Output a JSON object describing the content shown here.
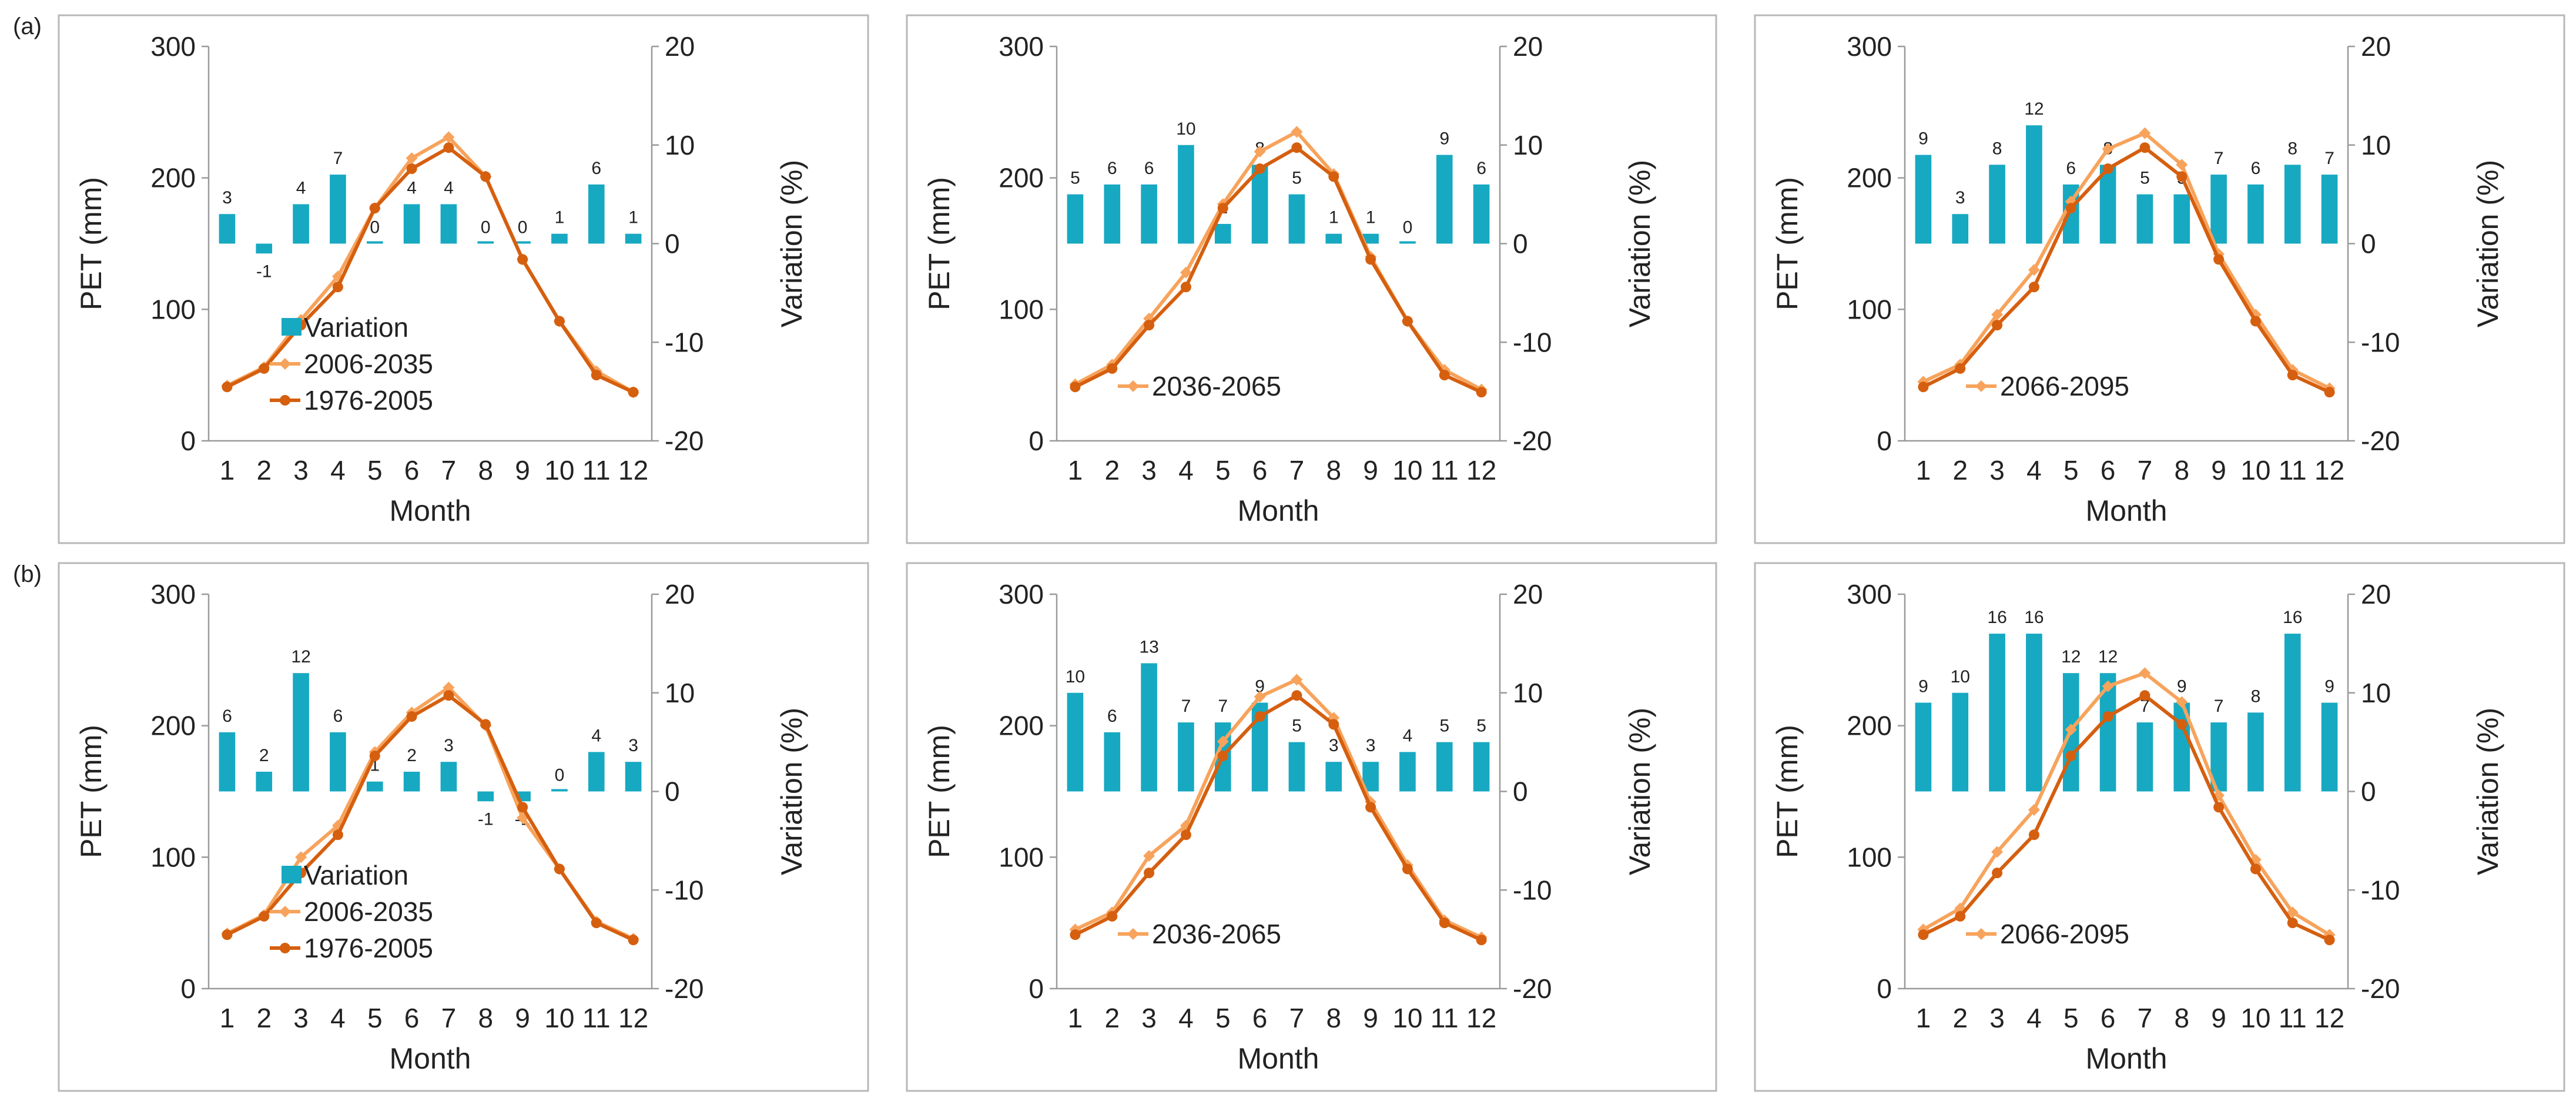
{
  "row_labels": [
    "(a)",
    "(b)"
  ],
  "colors": {
    "variation_bar": "#17a9c1",
    "future_line": "#f7a35c",
    "baseline_line": "#d55f0f",
    "frame": "#b8b8b8",
    "axis_text": "#222222"
  },
  "chart_data": [
    {
      "panel": "a1",
      "row": 0,
      "col": 0,
      "type": "bar+line",
      "xlabel": "Month",
      "ylabel_left": "PET (mm)",
      "ylabel_right": "Variation (%)",
      "categories": [
        1,
        2,
        3,
        4,
        5,
        6,
        7,
        8,
        9,
        10,
        11,
        12
      ],
      "left_axis": {
        "range": [
          0,
          300
        ],
        "ticks": [
          0,
          100,
          200,
          300
        ]
      },
      "right_axis": {
        "range": [
          -20,
          20
        ],
        "ticks": [
          -20,
          -10,
          0,
          10,
          20
        ]
      },
      "series": [
        {
          "name": "Variation",
          "kind": "bar",
          "axis": "right",
          "values": [
            3,
            -1,
            4,
            7,
            0,
            4,
            4,
            0,
            0,
            1,
            6,
            1
          ],
          "labels": [
            "3",
            "-1",
            "4",
            "7",
            "0",
            "4",
            "4",
            "0",
            "0",
            "1",
            "6",
            "1"
          ]
        },
        {
          "name": "2006-2035",
          "kind": "line",
          "axis": "left",
          "values": [
            42,
            56,
            92,
            125,
            177,
            215,
            231,
            201,
            138,
            91,
            53,
            37
          ]
        },
        {
          "name": "1976-2005",
          "kind": "line",
          "axis": "left",
          "values": [
            41,
            55,
            88,
            117,
            177,
            207,
            223,
            201,
            138,
            91,
            50,
            37
          ]
        }
      ],
      "legend": [
        {
          "label": "Variation",
          "kind": "bar"
        },
        {
          "label": "2006-2035",
          "kind": "future"
        },
        {
          "label": "1976-2005",
          "kind": "baseline"
        }
      ]
    },
    {
      "panel": "a2",
      "row": 0,
      "col": 1,
      "type": "bar+line",
      "xlabel": "Month",
      "ylabel_left": "PET (mm)",
      "ylabel_right": "Variation (%)",
      "categories": [
        1,
        2,
        3,
        4,
        5,
        6,
        7,
        8,
        9,
        10,
        11,
        12
      ],
      "left_axis": {
        "range": [
          0,
          300
        ],
        "ticks": [
          0,
          100,
          200,
          300
        ]
      },
      "right_axis": {
        "range": [
          -20,
          20
        ],
        "ticks": [
          -20,
          -10,
          0,
          10,
          20
        ]
      },
      "series": [
        {
          "name": "Variation",
          "kind": "bar",
          "axis": "right",
          "values": [
            5,
            6,
            6,
            10,
            2,
            8,
            5,
            1,
            1,
            0,
            9,
            6
          ],
          "labels": [
            "5",
            "6",
            "6",
            "10",
            "2",
            "8",
            "5",
            "1",
            "1",
            "0",
            "9",
            "6"
          ]
        },
        {
          "name": "2036-2065",
          "kind": "line",
          "axis": "left",
          "values": [
            43,
            58,
            93,
            128,
            180,
            220,
            235,
            203,
            140,
            91,
            54,
            39
          ]
        },
        {
          "name": "1976-2005",
          "kind": "line",
          "axis": "left",
          "values": [
            41,
            55,
            88,
            117,
            177,
            207,
            223,
            201,
            138,
            91,
            50,
            37
          ]
        }
      ],
      "legend": [
        {
          "label": "2036-2065",
          "kind": "future"
        }
      ]
    },
    {
      "panel": "a3",
      "row": 0,
      "col": 2,
      "type": "bar+line",
      "xlabel": "Month",
      "ylabel_left": "PET (mm)",
      "ylabel_right": "Variation (%)",
      "categories": [
        1,
        2,
        3,
        4,
        5,
        6,
        7,
        8,
        9,
        10,
        11,
        12
      ],
      "left_axis": {
        "range": [
          0,
          300
        ],
        "ticks": [
          0,
          100,
          200,
          300
        ]
      },
      "right_axis": {
        "range": [
          -20,
          20
        ],
        "ticks": [
          -20,
          -10,
          0,
          10,
          20
        ]
      },
      "series": [
        {
          "name": "Variation",
          "kind": "bar",
          "axis": "right",
          "values": [
            9,
            3,
            8,
            12,
            6,
            8,
            5,
            5,
            7,
            6,
            8,
            7
          ],
          "labels": [
            "9",
            "3",
            "8",
            "12",
            "6",
            "8",
            "5",
            "5",
            "7",
            "6",
            "8",
            "7"
          ]
        },
        {
          "name": "2066-2095",
          "kind": "line",
          "axis": "left",
          "values": [
            45,
            58,
            96,
            130,
            182,
            222,
            234,
            210,
            142,
            96,
            54,
            40
          ]
        },
        {
          "name": "1976-2005",
          "kind": "line",
          "axis": "left",
          "values": [
            41,
            55,
            88,
            117,
            177,
            207,
            223,
            201,
            138,
            91,
            50,
            37
          ]
        }
      ],
      "legend": [
        {
          "label": "2066-2095",
          "kind": "future"
        }
      ]
    },
    {
      "panel": "b1",
      "row": 1,
      "col": 0,
      "type": "bar+line",
      "xlabel": "Month",
      "ylabel_left": "PET (mm)",
      "ylabel_right": "Variation (%)",
      "categories": [
        1,
        2,
        3,
        4,
        5,
        6,
        7,
        8,
        9,
        10,
        11,
        12
      ],
      "left_axis": {
        "range": [
          0,
          300
        ],
        "ticks": [
          0,
          100,
          200,
          300
        ]
      },
      "right_axis": {
        "range": [
          -20,
          20
        ],
        "ticks": [
          -20,
          -10,
          0,
          10,
          20
        ]
      },
      "series": [
        {
          "name": "Variation",
          "kind": "bar",
          "axis": "right",
          "values": [
            6,
            2,
            12,
            6,
            1,
            2,
            3,
            -1,
            -1,
            0,
            4,
            3
          ],
          "labels": [
            "6",
            "2",
            "12",
            "6",
            "1",
            "2",
            "3",
            "-1",
            "-1",
            "0",
            "4",
            "3"
          ]
        },
        {
          "name": "2006-2035",
          "kind": "line",
          "axis": "left",
          "values": [
            42,
            56,
            100,
            124,
            180,
            210,
            229,
            200,
            130,
            91,
            51,
            38
          ]
        },
        {
          "name": "1976-2005",
          "kind": "line",
          "axis": "left",
          "values": [
            41,
            55,
            88,
            117,
            177,
            207,
            223,
            201,
            138,
            91,
            50,
            37
          ]
        }
      ],
      "legend": [
        {
          "label": "Variation",
          "kind": "bar"
        },
        {
          "label": "2006-2035",
          "kind": "future"
        },
        {
          "label": "1976-2005",
          "kind": "baseline"
        }
      ]
    },
    {
      "panel": "b2",
      "row": 1,
      "col": 1,
      "type": "bar+line",
      "xlabel": "Month",
      "ylabel_left": "PET (mm)",
      "ylabel_right": "Variation (%)",
      "categories": [
        1,
        2,
        3,
        4,
        5,
        6,
        7,
        8,
        9,
        10,
        11,
        12
      ],
      "left_axis": {
        "range": [
          0,
          300
        ],
        "ticks": [
          0,
          100,
          200,
          300
        ]
      },
      "right_axis": {
        "range": [
          -20,
          20
        ],
        "ticks": [
          -20,
          -10,
          0,
          10,
          20
        ]
      },
      "series": [
        {
          "name": "Variation",
          "kind": "bar",
          "axis": "right",
          "values": [
            10,
            6,
            13,
            7,
            7,
            9,
            5,
            3,
            3,
            4,
            5,
            5
          ],
          "labels": [
            "10",
            "6",
            "13",
            "7",
            "7",
            "9",
            "5",
            "3",
            "3",
            "4",
            "5",
            "5"
          ]
        },
        {
          "name": "2036-2065",
          "kind": "line",
          "axis": "left",
          "values": [
            45,
            58,
            101,
            124,
            188,
            222,
            235,
            206,
            142,
            94,
            52,
            39
          ]
        },
        {
          "name": "1976-2005",
          "kind": "line",
          "axis": "left",
          "values": [
            41,
            55,
            88,
            117,
            177,
            207,
            223,
            201,
            138,
            91,
            50,
            37
          ]
        }
      ],
      "legend": [
        {
          "label": "2036-2065",
          "kind": "future"
        }
      ]
    },
    {
      "panel": "b3",
      "row": 1,
      "col": 2,
      "type": "bar+line",
      "xlabel": "Month",
      "ylabel_left": "PET (mm)",
      "ylabel_right": "Variation (%)",
      "categories": [
        1,
        2,
        3,
        4,
        5,
        6,
        7,
        8,
        9,
        10,
        11,
        12
      ],
      "left_axis": {
        "range": [
          0,
          300
        ],
        "ticks": [
          0,
          100,
          200,
          300
        ]
      },
      "right_axis": {
        "range": [
          -20,
          20
        ],
        "ticks": [
          -20,
          -10,
          0,
          10,
          20
        ]
      },
      "series": [
        {
          "name": "Variation",
          "kind": "bar",
          "axis": "right",
          "values": [
            9,
            10,
            16,
            16,
            12,
            12,
            7,
            9,
            7,
            8,
            16,
            9
          ],
          "labels": [
            "9",
            "10",
            "16",
            "16",
            "12",
            "12",
            "7",
            "9",
            "7",
            "8",
            "16",
            "9"
          ]
        },
        {
          "name": "2066-2095",
          "kind": "line",
          "axis": "left",
          "values": [
            45,
            61,
            104,
            136,
            197,
            230,
            240,
            218,
            147,
            98,
            58,
            41
          ]
        },
        {
          "name": "1976-2005",
          "kind": "line",
          "axis": "left",
          "values": [
            41,
            55,
            88,
            117,
            177,
            207,
            223,
            201,
            138,
            91,
            50,
            37
          ]
        }
      ],
      "legend": [
        {
          "label": "2066-2095",
          "kind": "future"
        }
      ]
    }
  ]
}
